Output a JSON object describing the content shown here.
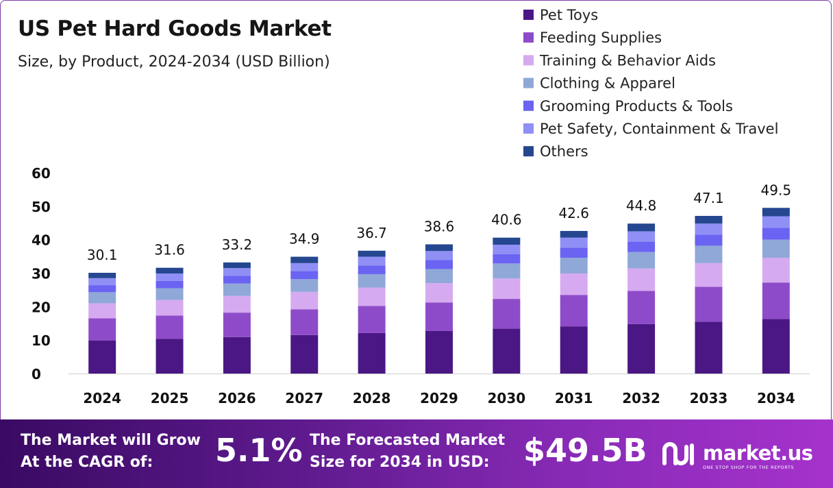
{
  "title": "US Pet Hard Goods Market",
  "subtitle": "Size, by Product, 2024-2034 (USD Billion)",
  "chart_data": {
    "type": "bar",
    "stacked": true,
    "title": "US Pet Hard Goods Market",
    "subtitle": "Size, by Product, 2024-2034 (USD Billion)",
    "categories": [
      "2024",
      "2025",
      "2026",
      "2027",
      "2028",
      "2029",
      "2030",
      "2031",
      "2032",
      "2033",
      "2034"
    ],
    "totals": [
      30.1,
      31.6,
      33.2,
      34.9,
      36.7,
      38.6,
      40.6,
      42.6,
      44.8,
      47.1,
      49.5
    ],
    "total_labels": [
      "30.1",
      "31.6",
      "33.2",
      "34.9",
      "36.7",
      "38.6",
      "40.6",
      "42.6",
      "44.8",
      "47.1",
      "49.5"
    ],
    "y_ticks": [
      0,
      10,
      20,
      30,
      40,
      50,
      60
    ],
    "ylim": [
      0,
      60
    ],
    "legend_position": "top-right",
    "series": [
      {
        "name": "Pet Toys",
        "color": "#4a1785",
        "values": [
          9.9,
          10.4,
          10.9,
          11.5,
          12.1,
          12.7,
          13.4,
          14.1,
          14.8,
          15.5,
          16.3
        ]
      },
      {
        "name": "Feeding Supplies",
        "color": "#8e4bc9",
        "values": [
          6.6,
          6.9,
          7.3,
          7.7,
          8.1,
          8.5,
          8.9,
          9.4,
          9.9,
          10.4,
          10.9
        ]
      },
      {
        "name": "Training & Behavior Aids",
        "color": "#d6aaf0",
        "values": [
          4.5,
          4.7,
          5.0,
          5.2,
          5.5,
          5.8,
          6.1,
          6.4,
          6.7,
          7.1,
          7.4
        ]
      },
      {
        "name": "Clothing & Apparel",
        "color": "#8fa8d8",
        "values": [
          3.3,
          3.5,
          3.7,
          3.8,
          4.0,
          4.2,
          4.5,
          4.7,
          4.9,
          5.2,
          5.4
        ]
      },
      {
        "name": "Grooming Products & Tools",
        "color": "#6b63f2",
        "values": [
          2.1,
          2.2,
          2.3,
          2.4,
          2.6,
          2.7,
          2.8,
          3.0,
          3.1,
          3.3,
          3.5
        ]
      },
      {
        "name": "Pet Safety, Containment & Travel",
        "color": "#8f8ff5",
        "values": [
          2.1,
          2.2,
          2.3,
          2.4,
          2.6,
          2.7,
          2.8,
          3.0,
          3.1,
          3.3,
          3.5
        ]
      },
      {
        "name": "Others",
        "color": "#24478f",
        "values": [
          1.6,
          1.7,
          1.7,
          1.9,
          1.8,
          2.0,
          2.1,
          2.0,
          2.3,
          2.3,
          2.5
        ]
      }
    ]
  },
  "footer": {
    "cagr_label_line1": "The Market will Grow",
    "cagr_label_line2": "At the CAGR of:",
    "cagr_value": "5.1%",
    "forecast_label_line1": "The Forecasted Market",
    "forecast_label_line2": "Size for 2034 in USD:",
    "forecast_value": "$49.5B",
    "logo_text": "market.us",
    "logo_tagline": "ONE STOP SHOP FOR THE REPORTS"
  }
}
